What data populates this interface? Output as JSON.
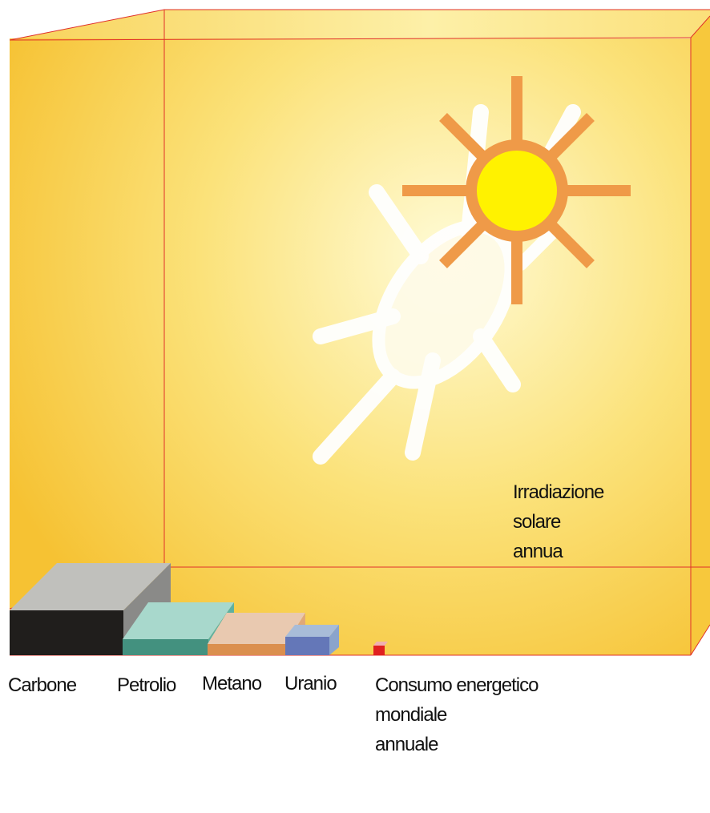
{
  "solar": {
    "label_lines": [
      "Irradiazione",
      "solare",
      "annua"
    ]
  },
  "sources": [
    {
      "label": "Carbone"
    },
    {
      "label": "Petrolio"
    },
    {
      "label": "Metano"
    },
    {
      "label": "Uranio"
    }
  ],
  "consumption": {
    "label_lines": [
      "Consumo energetico",
      "mondiale",
      "annuale"
    ]
  }
}
